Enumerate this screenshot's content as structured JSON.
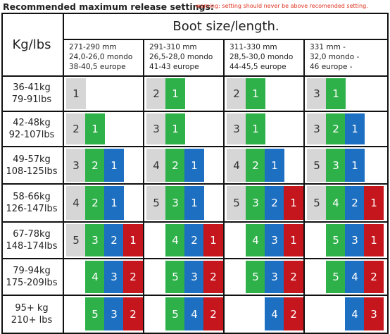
{
  "header": {
    "title": "Recommended maximum release settings:",
    "warning": "warning: setting should never be above recomended setting."
  },
  "table": {
    "weight_header": "Kg/lbs",
    "boot_header": "Boot size/length.",
    "boot_sizes": [
      {
        "lines": [
          "271-290 mm",
          "24,0-26,0 mondo",
          "38-40,5 europe"
        ]
      },
      {
        "lines": [
          "291-310 mm",
          "26,5-28,0 mondo",
          "41-43 europe"
        ]
      },
      {
        "lines": [
          "311-330 mm",
          "28,5-30,0 mondo",
          "44-45,5 europe"
        ]
      },
      {
        "lines": [
          "331 mm -",
          "32,0 mondo -",
          "46 europe -"
        ]
      }
    ],
    "colors": {
      "gray": "#d6d6d6",
      "green": "#2fb14a",
      "blue": "#1c6fc1",
      "red": "#c4161c"
    },
    "rows": [
      {
        "kg": "36-41kg",
        "lbs": "79-91lbs",
        "settings": [
          [
            "1",
            "",
            "",
            ""
          ],
          [
            "2",
            "1",
            "",
            ""
          ],
          [
            "2",
            "1",
            "",
            ""
          ],
          [
            "3",
            "1",
            "",
            ""
          ]
        ]
      },
      {
        "kg": "42-48kg",
        "lbs": "92-107lbs",
        "settings": [
          [
            "2",
            "1",
            "",
            ""
          ],
          [
            "3",
            "1",
            "",
            ""
          ],
          [
            "3",
            "1",
            "",
            ""
          ],
          [
            "3",
            "2",
            "1",
            ""
          ]
        ]
      },
      {
        "kg": "49-57kg",
        "lbs": "108-125lbs",
        "settings": [
          [
            "3",
            "2",
            "1",
            ""
          ],
          [
            "4",
            "2",
            "1",
            ""
          ],
          [
            "4",
            "2",
            "1",
            ""
          ],
          [
            "5",
            "3",
            "1",
            ""
          ]
        ]
      },
      {
        "kg": "58-66kg",
        "lbs": "126-147lbs",
        "settings": [
          [
            "4",
            "2",
            "1",
            ""
          ],
          [
            "5",
            "3",
            "1",
            ""
          ],
          [
            "5",
            "3",
            "2",
            "1"
          ],
          [
            "5",
            "4",
            "2",
            "1"
          ]
        ]
      },
      {
        "kg": "67-78kg",
        "lbs": "148-174lbs",
        "settings": [
          [
            "5",
            "3",
            "2",
            "1"
          ],
          [
            "",
            "4",
            "2",
            "1"
          ],
          [
            "",
            "4",
            "3",
            "1"
          ],
          [
            "",
            "5",
            "3",
            "1"
          ]
        ]
      },
      {
        "kg": "79-94kg",
        "lbs": "175-209lbs",
        "settings": [
          [
            "",
            "4",
            "3",
            "2"
          ],
          [
            "",
            "5",
            "3",
            "2"
          ],
          [
            "",
            "5",
            "3",
            "2"
          ],
          [
            "",
            "5",
            "4",
            "2"
          ]
        ]
      },
      {
        "kg": "95+ kg",
        "lbs": "210+ lbs",
        "settings": [
          [
            "",
            "5",
            "3",
            "2"
          ],
          [
            "",
            "5",
            "4",
            "2"
          ],
          [
            "",
            "",
            "4",
            "2"
          ],
          [
            "",
            "",
            "4",
            "3"
          ]
        ]
      }
    ]
  }
}
